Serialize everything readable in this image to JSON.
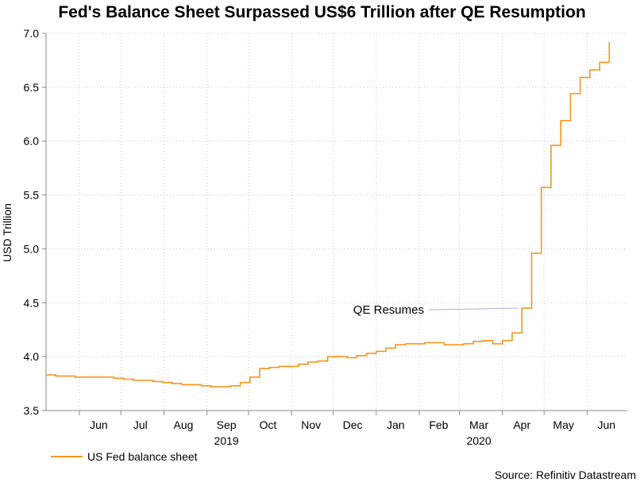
{
  "page": {
    "title": "Fed's Balance Sheet Surpassed US$6 Trillion after QE Resumption",
    "source": "Source: Refinitiv Datastream"
  },
  "chart_data": {
    "type": "line",
    "title": "Fed's Balance Sheet Surpassed US$6 Trillion after QE Resumption",
    "ylabel": "USD Trillion",
    "xlabel": "",
    "ylim": [
      3.5,
      7.0
    ],
    "y_ticks": [
      "3.5",
      "4.0",
      "4.5",
      "5.0",
      "5.5",
      "6.0",
      "6.5",
      "7.0"
    ],
    "x_range": [
      "2019-05-08",
      "2020-06-30"
    ],
    "x_ticks": [
      {
        "label": "Jun",
        "date": "2019-06-15"
      },
      {
        "label": "Jul",
        "date": "2019-07-15"
      },
      {
        "label": "Aug",
        "date": "2019-08-15"
      },
      {
        "label": "Sep",
        "date": "2019-09-15"
      },
      {
        "label": "Oct",
        "date": "2019-10-15"
      },
      {
        "label": "Nov",
        "date": "2019-11-15"
      },
      {
        "label": "Dec",
        "date": "2019-12-15"
      },
      {
        "label": "Jan",
        "date": "2020-01-15"
      },
      {
        "label": "Feb",
        "date": "2020-02-15"
      },
      {
        "label": "Mar",
        "date": "2020-03-15"
      },
      {
        "label": "Apr",
        "date": "2020-04-15"
      },
      {
        "label": "May",
        "date": "2020-05-15"
      },
      {
        "label": "Jun",
        "date": "2020-06-15"
      }
    ],
    "year_labels": [
      {
        "label": "2019",
        "date": "2019-09-15"
      },
      {
        "label": "2020",
        "date": "2020-03-15"
      }
    ],
    "grid": true,
    "legend_position": "bottom-left",
    "series": [
      {
        "name": "US Fed balance sheet",
        "color": "#f7941d",
        "step": true,
        "points": [
          [
            "2019-05-08",
            3.83
          ],
          [
            "2019-05-15",
            3.82
          ],
          [
            "2019-05-22",
            3.82
          ],
          [
            "2019-05-29",
            3.81
          ],
          [
            "2019-06-05",
            3.81
          ],
          [
            "2019-06-12",
            3.81
          ],
          [
            "2019-06-19",
            3.81
          ],
          [
            "2019-06-26",
            3.8
          ],
          [
            "2019-07-03",
            3.79
          ],
          [
            "2019-07-10",
            3.78
          ],
          [
            "2019-07-17",
            3.78
          ],
          [
            "2019-07-24",
            3.77
          ],
          [
            "2019-07-31",
            3.76
          ],
          [
            "2019-08-07",
            3.75
          ],
          [
            "2019-08-14",
            3.74
          ],
          [
            "2019-08-21",
            3.74
          ],
          [
            "2019-08-28",
            3.73
          ],
          [
            "2019-09-04",
            3.72
          ],
          [
            "2019-09-11",
            3.72
          ],
          [
            "2019-09-18",
            3.73
          ],
          [
            "2019-09-25",
            3.76
          ],
          [
            "2019-10-02",
            3.81
          ],
          [
            "2019-10-09",
            3.89
          ],
          [
            "2019-10-16",
            3.9
          ],
          [
            "2019-10-23",
            3.91
          ],
          [
            "2019-10-30",
            3.91
          ],
          [
            "2019-11-06",
            3.93
          ],
          [
            "2019-11-13",
            3.95
          ],
          [
            "2019-11-20",
            3.96
          ],
          [
            "2019-11-27",
            4.0
          ],
          [
            "2019-12-04",
            4.0
          ],
          [
            "2019-12-11",
            3.99
          ],
          [
            "2019-12-18",
            4.01
          ],
          [
            "2019-12-25",
            4.03
          ],
          [
            "2020-01-01",
            4.05
          ],
          [
            "2020-01-08",
            4.08
          ],
          [
            "2020-01-15",
            4.11
          ],
          [
            "2020-01-22",
            4.12
          ],
          [
            "2020-01-29",
            4.12
          ],
          [
            "2020-02-05",
            4.13
          ],
          [
            "2020-02-12",
            4.13
          ],
          [
            "2020-02-19",
            4.11
          ],
          [
            "2020-02-26",
            4.11
          ],
          [
            "2020-03-04",
            4.12
          ],
          [
            "2020-03-11",
            4.14
          ],
          [
            "2020-03-18",
            4.15
          ],
          [
            "2020-03-25",
            4.12
          ],
          [
            "2020-04-01",
            4.15
          ],
          [
            "2020-04-08",
            4.22
          ],
          [
            "2020-04-15",
            4.45
          ],
          [
            "2020-04-22",
            4.96
          ],
          [
            "2020-04-29",
            5.57
          ],
          [
            "2020-05-06",
            5.96
          ],
          [
            "2020-05-13",
            6.19
          ],
          [
            "2020-05-20",
            6.44
          ],
          [
            "2020-05-27",
            6.59
          ],
          [
            "2020-06-03",
            6.66
          ],
          [
            "2020-06-10",
            6.73
          ],
          [
            "2020-06-17",
            6.92
          ]
        ]
      }
    ],
    "annotations": [
      {
        "text": "QE Resumes",
        "date": "2020-04-15",
        "value": 4.45
      }
    ]
  },
  "legend": {
    "series_label": "US Fed balance sheet"
  }
}
